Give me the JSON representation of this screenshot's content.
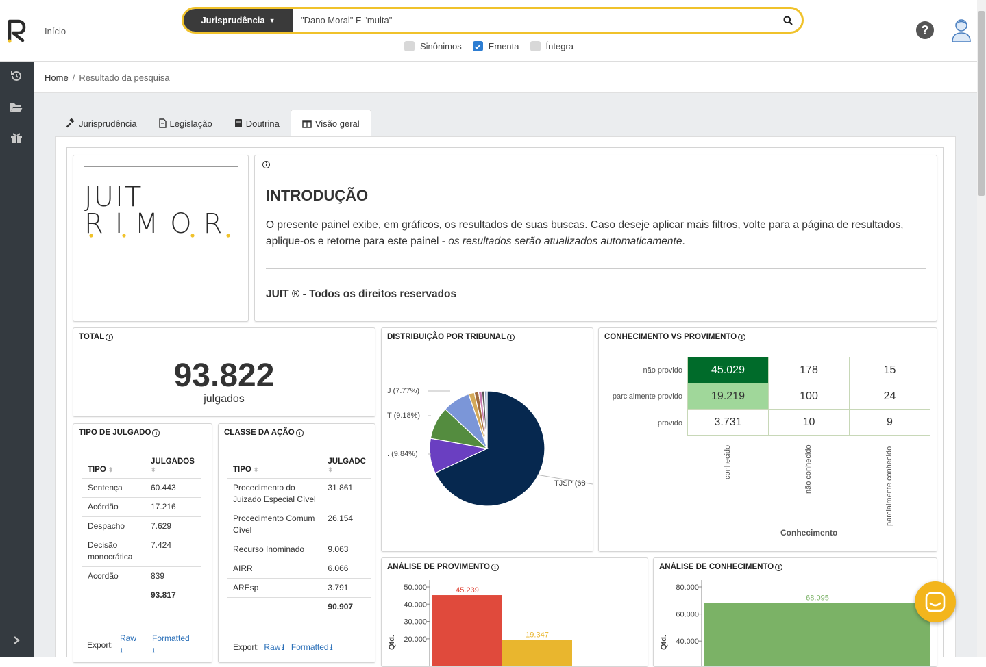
{
  "topbar": {
    "home_link": "Início",
    "search": {
      "type_label": "Jurisprudência",
      "query": "\"Dano Moral\" E \"multa\""
    },
    "options": [
      {
        "label": "Sinônimos",
        "checked": false
      },
      {
        "label": "Ementa",
        "checked": true
      },
      {
        "label": "Íntegra",
        "checked": false
      }
    ]
  },
  "breadcrumb": {
    "home": "Home",
    "separator": "/",
    "current": "Resultado da pesquisa"
  },
  "tabs": [
    {
      "label": "Jurisprudência",
      "icon": "gavel-icon"
    },
    {
      "label": "Legislação",
      "icon": "document-icon"
    },
    {
      "label": "Doutrina",
      "icon": "book-icon"
    },
    {
      "label": "Visão geral",
      "icon": "columns-icon",
      "active": true
    }
  ],
  "logo": {
    "line1": "JUIT",
    "line2": "RIMOR"
  },
  "intro": {
    "title": "INTRODUÇÃO",
    "text": "O presente painel exibe, em gráficos, os resultados de suas buscas. Caso deseje aplicar mais filtros, volte para a página de resultados, aplique-os e retorne para este painel - ",
    "text_em": "os resultados serão atualizados automaticamente",
    "text_end": ".",
    "rights": "JUIT ® - Todos os direitos reservados"
  },
  "total": {
    "title": "TOTAL",
    "value": "93.822",
    "unit": "julgados"
  },
  "tipo_julgado": {
    "title": "TIPO DE JULGADO",
    "col1": "TIPO",
    "col2": "JULGADOS",
    "rows": [
      {
        "tipo": "Sentença",
        "n": "60.443"
      },
      {
        "tipo": "Acórdão",
        "n": "17.216"
      },
      {
        "tipo": "Despacho",
        "n": "7.629"
      },
      {
        "tipo": "Decisão monocrática",
        "n": "7.424"
      },
      {
        "tipo": "Acordão",
        "n": "839"
      }
    ],
    "total": "93.817",
    "export_label": "Export:",
    "raw": "Raw",
    "formatted": "Formatted"
  },
  "classe_acao": {
    "title": "CLASSE DA AÇÃO",
    "col1": "TIPO",
    "col2": "JULGADC",
    "rows": [
      {
        "tipo": "Procedimento do Juizado Especial Cível",
        "n": "31.861"
      },
      {
        "tipo": "Procedimento Comum Cível",
        "n": "26.154"
      },
      {
        "tipo": "Recurso Inominado",
        "n": "9.063"
      },
      {
        "tipo": "AIRR",
        "n": "6.066"
      },
      {
        "tipo": "AREsp",
        "n": "3.791"
      }
    ],
    "total": "90.907",
    "export_label": "Export:",
    "raw": "Raw",
    "formatted": "Formatted"
  },
  "distribuicao": {
    "title": "DISTRIBUIÇÃO POR TRIBUNAL",
    "labels": [
      "J (7.77%)",
      "T (9.18%)",
      ". (9.84%)",
      "TJSP (68"
    ]
  },
  "conhecimento_provimento": {
    "title": "CONHECIMENTO VS PROVIMENTO",
    "rows": [
      "não provido",
      "parcialmente provido",
      "provido"
    ],
    "cols": [
      "conhecido",
      "não conhecido",
      "parcialmente conhecido"
    ],
    "values": [
      [
        "45.029",
        "178",
        "15"
      ],
      [
        "19.219",
        "100",
        "24"
      ],
      [
        "3.731",
        "10",
        "9"
      ]
    ],
    "xlabel": "Conhecimento"
  },
  "chart_data": [
    {
      "type": "pie",
      "title": "DISTRIBUIÇÃO POR TRIBUNAL",
      "slices": [
        {
          "label": "TJSP",
          "percent": 68.0,
          "color": "#06284f"
        },
        {
          "label": "?",
          "percent": 9.84,
          "color": "#6a3fc1"
        },
        {
          "label": "?",
          "percent": 9.18,
          "color": "#548c3f"
        },
        {
          "label": "?",
          "percent": 7.77,
          "color": "#7b96d8"
        },
        {
          "label": "",
          "percent": 1.6,
          "color": "#d4a95a"
        },
        {
          "label": "",
          "percent": 1.2,
          "color": "#a06a3c"
        },
        {
          "label": "",
          "percent": 0.9,
          "color": "#c97ab0"
        },
        {
          "label": "",
          "percent": 0.8,
          "color": "#555555"
        },
        {
          "label": "",
          "percent": 0.71,
          "color": "#99aacc"
        }
      ]
    },
    {
      "type": "bar",
      "title": "ANÁLISE DE PROVIMENTO",
      "ylabel": "Qtd.",
      "values": [
        45239,
        19347
      ],
      "value_labels": [
        "45.239",
        "19.347"
      ],
      "colors": [
        "#e04a3c",
        "#e9b62e"
      ],
      "yticks": [
        "50.000",
        "40.000",
        "30.000",
        "20.000"
      ],
      "ylim": [
        0,
        50000
      ]
    },
    {
      "type": "bar",
      "title": "ANÁLISE DE CONHECIMENTO",
      "ylabel": "Qtd.",
      "values": [
        68095
      ],
      "value_labels": [
        "68.095"
      ],
      "colors": [
        "#7bb266"
      ],
      "yticks": [
        "80.000",
        "60.000",
        "40.000"
      ],
      "ylim": [
        0,
        80000
      ]
    }
  ]
}
